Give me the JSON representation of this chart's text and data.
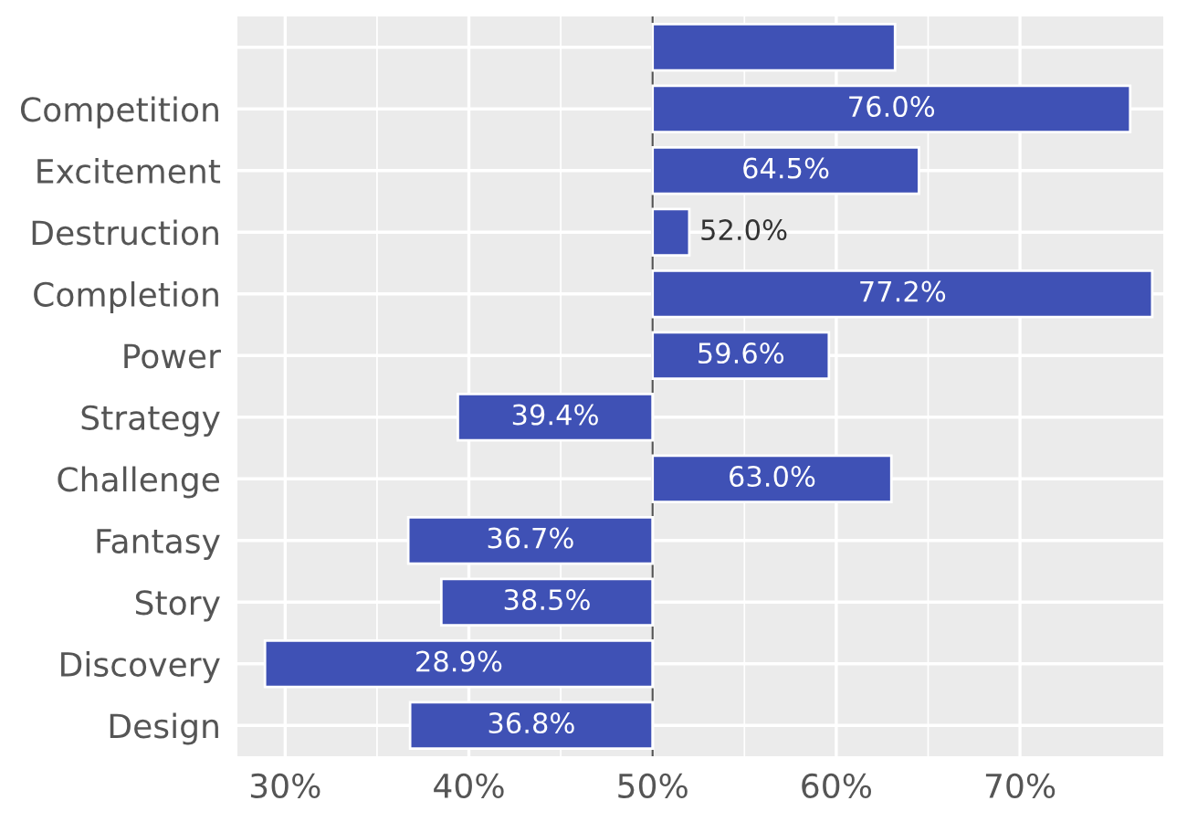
{
  "chart_data": {
    "type": "bar",
    "orientation": "horizontal",
    "categories": [
      null,
      "Competition",
      "Excitement",
      "Destruction",
      "Completion",
      "Power",
      "Strategy",
      "Challenge",
      "Fantasy",
      "Story",
      "Discovery",
      "Design"
    ],
    "base": [
      50,
      50,
      50,
      50,
      50,
      50,
      50,
      50,
      50,
      50,
      50,
      50
    ],
    "values": [
      13.2,
      26.0,
      14.5,
      2.0,
      27.2,
      9.6,
      -10.6,
      13.0,
      -13.3,
      -11.5,
      -21.1,
      -13.2
    ],
    "value_labels": [
      null,
      "76.0%",
      "64.5%",
      "52.0%",
      "77.2%",
      "59.6%",
      "39.4%",
      "63.0%",
      "36.7%",
      "38.5%",
      "28.9%",
      "36.8%"
    ],
    "color": "#3f51b5",
    "xlim": [
      27.4,
      77.8
    ],
    "xticks": [
      {
        "value": 30,
        "label": "30%"
      },
      {
        "value": 40,
        "label": "40%"
      },
      {
        "value": 50,
        "label": "50%"
      },
      {
        "value": 60,
        "label": "60%"
      },
      {
        "value": 70,
        "label": "70%"
      }
    ],
    "grid": true,
    "ref_lines": [
      {
        "axis": "x",
        "value": 50,
        "color": "#555555"
      }
    ]
  }
}
